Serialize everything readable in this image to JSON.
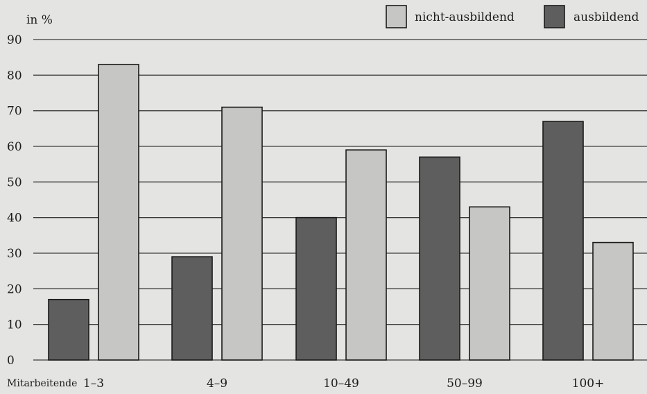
{
  "colors": {
    "background": "#e4e4e2",
    "nicht_ausbildend": "#c6c6c4",
    "ausbildend": "#5e5e5e",
    "gridline": "#3a3a3a"
  },
  "chart_data": {
    "type": "bar",
    "title": "",
    "ylabel": "in %",
    "xlabel": "Mitarbeitende",
    "categories": [
      "1–3",
      "4–9",
      "10–49",
      "50–99",
      "100+"
    ],
    "series": [
      {
        "name": "ausbildend",
        "values": [
          17,
          29,
          40,
          57,
          67
        ]
      },
      {
        "name": "nicht-ausbildend",
        "values": [
          83,
          71,
          59,
          43,
          33
        ]
      }
    ],
    "series_order_in_group": [
      "ausbildend",
      "nicht-ausbildend"
    ],
    "ylim": [
      0,
      90
    ],
    "yticks": [
      0,
      10,
      20,
      30,
      40,
      50,
      60,
      70,
      80,
      90
    ],
    "grid": true,
    "legend_position": "top-right"
  }
}
